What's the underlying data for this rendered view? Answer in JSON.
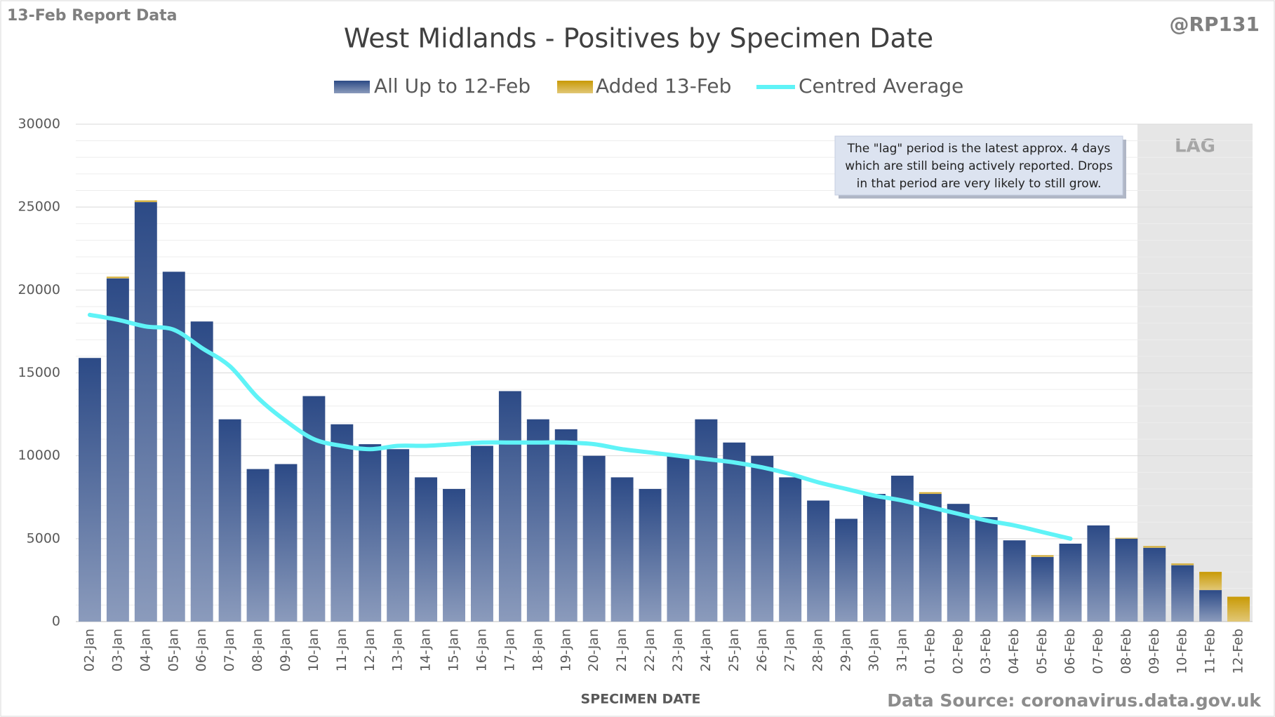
{
  "chart_data": {
    "type": "bar",
    "header_left": "13-Feb Report Data",
    "header_right": "@RP131",
    "title": "West Midlands - Positives by Specimen Date",
    "xlabel": "SPECIMEN DATE",
    "source": "Data Source: coronavirus.data.gov.uk",
    "note": [
      "The \"lag\" period is the latest approx. 4 days",
      "which are still being actively reported.  Drops",
      "in that period are very likely to still grow."
    ],
    "lag_label": "LAG",
    "stacked": true,
    "grid": true,
    "legend": "top",
    "categories": [
      "02-Jan",
      "03-Jan",
      "04-Jan",
      "05-Jan",
      "06-Jan",
      "07-Jan",
      "08-Jan",
      "09-Jan",
      "10-Jan",
      "11-Jan",
      "12-Jan",
      "13-Jan",
      "14-Jan",
      "15-Jan",
      "16-Jan",
      "17-Jan",
      "18-Jan",
      "19-Jan",
      "20-Jan",
      "21-Jan",
      "22-Jan",
      "23-Jan",
      "24-Jan",
      "25-Jan",
      "26-Jan",
      "27-Jan",
      "28-Jan",
      "29-Jan",
      "30-Jan",
      "31-Jan",
      "01-Feb",
      "02-Feb",
      "03-Feb",
      "04-Feb",
      "05-Feb",
      "06-Feb",
      "07-Feb",
      "08-Feb",
      "09-Feb",
      "10-Feb",
      "11-Feb",
      "12-Feb"
    ],
    "series": [
      {
        "name": "All Up to 12-Feb",
        "type": "bar",
        "color": "#2c4a86",
        "values": [
          15900,
          20700,
          25300,
          21100,
          18100,
          12200,
          9200,
          9500,
          13600,
          11900,
          10700,
          10400,
          8700,
          8000,
          10600,
          13900,
          12200,
          11600,
          10000,
          8700,
          8000,
          10000,
          12200,
          10800,
          10000,
          8700,
          7300,
          6200,
          7700,
          8800,
          7700,
          7100,
          6300,
          4900,
          3900,
          4700,
          5800,
          5000,
          4450,
          3400,
          1900,
          0
        ]
      },
      {
        "name": "Added 13-Feb",
        "type": "bar",
        "color": "#c99a06",
        "values": [
          0,
          100,
          100,
          0,
          0,
          0,
          0,
          0,
          0,
          0,
          0,
          0,
          0,
          0,
          0,
          0,
          0,
          0,
          0,
          0,
          0,
          0,
          0,
          0,
          0,
          0,
          0,
          0,
          0,
          0,
          100,
          0,
          0,
          0,
          100,
          0,
          0,
          50,
          100,
          100,
          1100,
          1500
        ]
      },
      {
        "name": "Centred Average",
        "type": "line",
        "color": "#5ff3f7",
        "values": [
          18500,
          18200,
          17800,
          17600,
          16500,
          15400,
          13500,
          12100,
          11000,
          10600,
          10400,
          10600,
          10600,
          10700,
          10800,
          10800,
          10800,
          10800,
          10700,
          10400,
          10200,
          10000,
          9800,
          9600,
          9300,
          8900,
          8400,
          8000,
          7600,
          7300,
          6900,
          6500,
          6100,
          5800,
          5400,
          5000,
          null,
          null,
          null,
          null,
          null,
          null
        ]
      }
    ],
    "ylim": [
      0,
      30000
    ],
    "yticks": [
      0,
      5000,
      10000,
      15000,
      20000,
      25000,
      30000
    ]
  }
}
